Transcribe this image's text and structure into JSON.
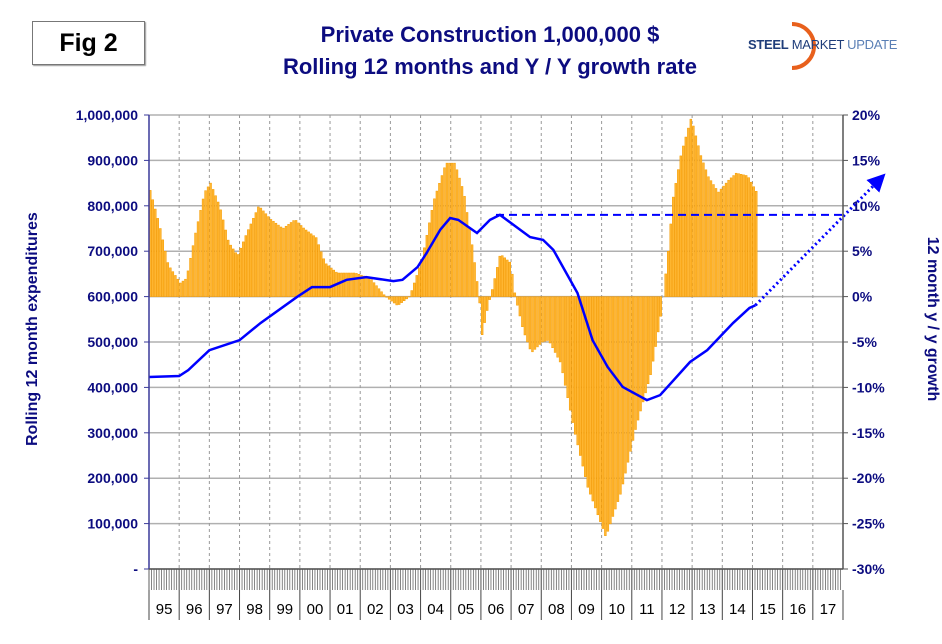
{
  "fig_label": "Fig 2",
  "logo": {
    "word1": "STEEL",
    "word2": "MARKET",
    "word3": "UPDATE"
  },
  "colors": {
    "title": "#0c0c80",
    "bars": "#FFA500",
    "line": "#0000FF"
  },
  "chart_data": {
    "type": "bar+line",
    "title": "Private Construction 1,000,000 $",
    "subtitle": "Rolling 12 months and Y / Y growth rate",
    "ylabel_left": "Rolling 12 month expenditures",
    "ylabel_right": "12 month y / y growth",
    "left_ticks": [
      "-",
      "100,000",
      "200,000",
      "300,000",
      "400,000",
      "500,000",
      "600,000",
      "700,000",
      "800,000",
      "900,000",
      "1,000,000"
    ],
    "ylim_left": [
      0,
      1000000
    ],
    "right_ticks": [
      "-30%",
      "-25%",
      "-20%",
      "-15%",
      "-10%",
      "-5%",
      "0%",
      "5%",
      "10%",
      "15%",
      "20%"
    ],
    "ylim_right": [
      -30,
      20
    ],
    "x_categories": [
      "95",
      "96",
      "97",
      "98",
      "99",
      "00",
      "01",
      "02",
      "03",
      "04",
      "05",
      "06",
      "07",
      "08",
      "09",
      "10",
      "11",
      "12",
      "13",
      "14",
      "15",
      "16",
      "17"
    ],
    "xlim": [
      1995,
      2018
    ],
    "grid": true,
    "growth_series": {
      "name": "12 month y/y growth (%)",
      "axis": "right",
      "type": "bar",
      "frequency": "monthly",
      "keypoints": [
        [
          1995.0,
          11.7
        ],
        [
          1995.3,
          8
        ],
        [
          1995.6,
          3.5
        ],
        [
          1996.0,
          1.5
        ],
        [
          1996.2,
          2
        ],
        [
          1996.5,
          7
        ],
        [
          1996.8,
          11.5
        ],
        [
          1997.0,
          12.5
        ],
        [
          1997.3,
          10
        ],
        [
          1997.6,
          6
        ],
        [
          1997.9,
          4.5
        ],
        [
          1998.2,
          7
        ],
        [
          1998.6,
          10
        ],
        [
          1999.0,
          8.5
        ],
        [
          1999.4,
          7.5
        ],
        [
          1999.8,
          8.5
        ],
        [
          2000.1,
          7.5
        ],
        [
          2000.5,
          6.5
        ],
        [
          2000.8,
          3.7
        ],
        [
          2001.2,
          2.6
        ],
        [
          2001.8,
          2.6
        ],
        [
          2002.3,
          2.0
        ],
        [
          2002.8,
          0
        ],
        [
          2003.2,
          -1.0
        ],
        [
          2003.6,
          0
        ],
        [
          2004.0,
          4
        ],
        [
          2004.4,
          10.6
        ],
        [
          2004.8,
          14.7
        ],
        [
          2005.1,
          14.7
        ],
        [
          2005.4,
          11.4
        ],
        [
          2005.7,
          5
        ],
        [
          2005.9,
          0
        ],
        [
          2006.0,
          -4.2
        ],
        [
          2006.2,
          -1
        ],
        [
          2006.35,
          1
        ],
        [
          2006.6,
          4.7
        ],
        [
          2006.95,
          3.7
        ],
        [
          2007.1,
          0
        ],
        [
          2007.36,
          -3.7
        ],
        [
          2007.63,
          -6.2
        ],
        [
          2008.0,
          -5
        ],
        [
          2008.2,
          -4.8
        ],
        [
          2008.6,
          -7.3
        ],
        [
          2009.05,
          -14.7
        ],
        [
          2009.5,
          -21
        ],
        [
          2010.05,
          -26
        ],
        [
          2010.1,
          -26.5
        ],
        [
          2010.6,
          -21.6
        ],
        [
          2011.1,
          -14.4
        ],
        [
          2011.6,
          -8.4
        ],
        [
          2011.9,
          -2.6
        ],
        [
          2012.0,
          0
        ],
        [
          2012.17,
          5.1
        ],
        [
          2012.33,
          10.9
        ],
        [
          2012.6,
          15.8
        ],
        [
          2012.93,
          19.7
        ],
        [
          2013.26,
          15.4
        ],
        [
          2013.5,
          13.2
        ],
        [
          2013.83,
          11.5
        ],
        [
          2014.16,
          12.8
        ],
        [
          2014.42,
          13.6
        ],
        [
          2014.8,
          13.3
        ],
        [
          2015.1,
          11.5
        ]
      ]
    },
    "expenditure_series": {
      "name": "Rolling 12 month expenditures",
      "axis": "left",
      "type": "line",
      "points": [
        [
          1995.0,
          423000
        ],
        [
          1996.0,
          425000
        ],
        [
          1996.3,
          438000
        ],
        [
          1997.0,
          482000
        ],
        [
          1998.0,
          504000
        ],
        [
          1998.7,
          542000
        ],
        [
          1999.9,
          599000
        ],
        [
          2000.4,
          621000
        ],
        [
          2001.0,
          621000
        ],
        [
          2001.55,
          637000
        ],
        [
          2002.2,
          643000
        ],
        [
          2003.1,
          634000
        ],
        [
          2003.4,
          637000
        ],
        [
          2003.9,
          665000
        ],
        [
          2004.2,
          696000
        ],
        [
          2004.65,
          747000
        ],
        [
          2004.98,
          773000
        ],
        [
          2005.25,
          769000
        ],
        [
          2005.87,
          740000
        ],
        [
          2006.3,
          769000
        ],
        [
          2006.63,
          780000
        ],
        [
          2007.63,
          731000
        ],
        [
          2008.06,
          725000
        ],
        [
          2008.4,
          703000
        ],
        [
          2009.2,
          608000
        ],
        [
          2009.7,
          504000
        ],
        [
          2010.2,
          445000
        ],
        [
          2010.7,
          401000
        ],
        [
          2011.5,
          372000
        ],
        [
          2011.94,
          383000
        ],
        [
          2012.93,
          456000
        ],
        [
          2013.5,
          482000
        ],
        [
          2014.36,
          542000
        ],
        [
          2014.9,
          575000
        ],
        [
          2015.1,
          581000
        ]
      ]
    },
    "reference_line": {
      "style": "dashed",
      "axis": "left",
      "value": 780000,
      "x_range": [
        2006.5,
        2018
      ]
    },
    "projection": {
      "style": "dotted-arrow",
      "axis": "left",
      "from": [
        2015.1,
        581000
      ],
      "to": [
        2019.2,
        857000
      ]
    }
  }
}
